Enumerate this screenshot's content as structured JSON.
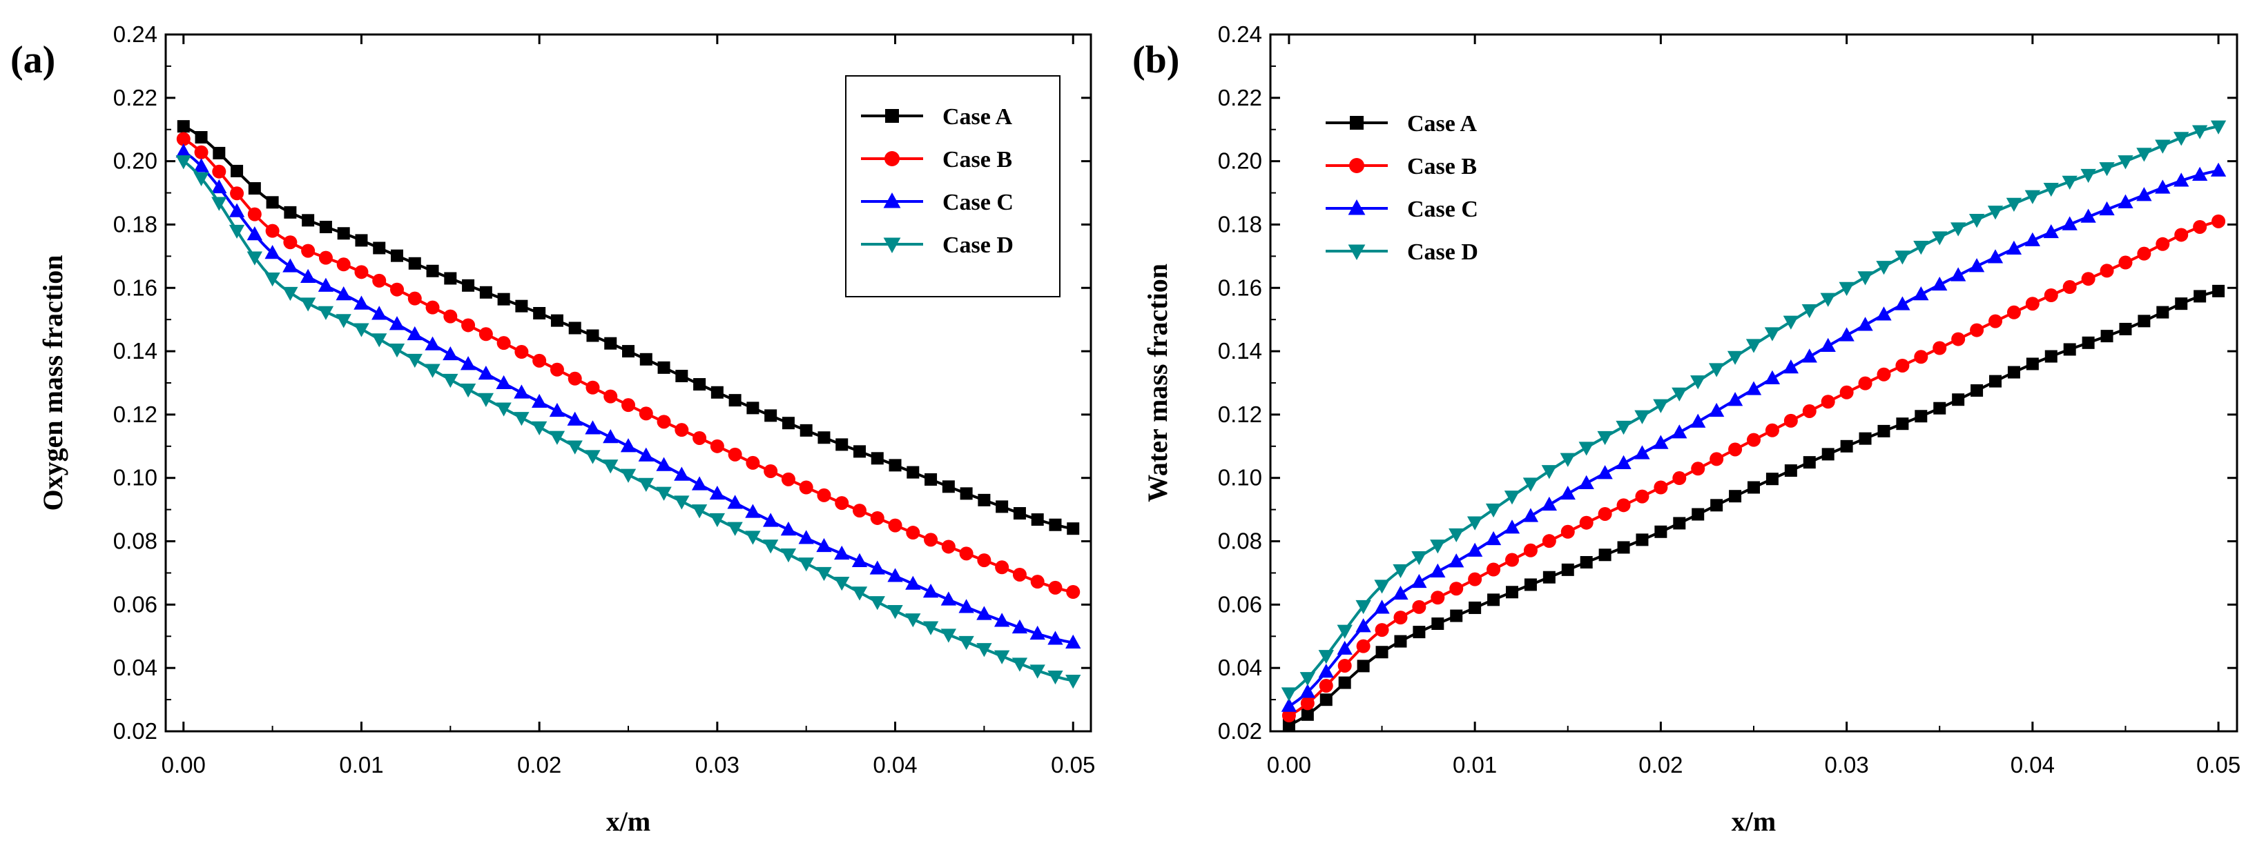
{
  "chart_data": [
    {
      "panel_label": "(a)",
      "type": "line",
      "title": "",
      "xlabel": "x/m",
      "ylabel": "Oxygen mass fraction",
      "xlim": [
        -0.001,
        0.051
      ],
      "ylim": [
        0.02,
        0.24
      ],
      "x_ticks": [
        "0.00",
        "0.01",
        "0.02",
        "0.03",
        "0.04",
        "0.05"
      ],
      "y_ticks": [
        "0.02",
        "0.04",
        "0.06",
        "0.08",
        "0.10",
        "0.12",
        "0.14",
        "0.16",
        "0.18",
        "0.20",
        "0.22",
        "0.24"
      ],
      "legend_position": "top-right",
      "x": [
        0.0,
        0.005,
        0.01,
        0.015,
        0.02,
        0.025,
        0.03,
        0.035,
        0.04,
        0.045,
        0.05
      ],
      "series": [
        {
          "name": "Case A",
          "color": "#000000",
          "marker": "square",
          "values": [
            0.211,
            0.187,
            0.175,
            0.163,
            0.152,
            0.14,
            0.127,
            0.115,
            0.104,
            0.093,
            0.084
          ]
        },
        {
          "name": "Case B",
          "color": "#ff0000",
          "marker": "circle",
          "values": [
            0.207,
            0.178,
            0.165,
            0.151,
            0.137,
            0.123,
            0.11,
            0.097,
            0.085,
            0.074,
            0.064
          ]
        },
        {
          "name": "Case C",
          "color": "#0000ff",
          "marker": "triangle-up",
          "values": [
            0.203,
            0.171,
            0.155,
            0.139,
            0.124,
            0.11,
            0.095,
            0.081,
            0.069,
            0.057,
            0.048
          ]
        },
        {
          "name": "Case D",
          "color": "#008b8b",
          "marker": "triangle-down",
          "values": [
            0.2,
            0.163,
            0.147,
            0.131,
            0.116,
            0.101,
            0.087,
            0.073,
            0.058,
            0.046,
            0.036
          ]
        }
      ]
    },
    {
      "panel_label": "(b)",
      "type": "line",
      "title": "",
      "xlabel": "x/m",
      "ylabel": "Water mass fraction",
      "xlim": [
        -0.001,
        0.051
      ],
      "ylim": [
        0.02,
        0.24
      ],
      "x_ticks": [
        "0.00",
        "0.01",
        "0.02",
        "0.03",
        "0.04",
        "0.05"
      ],
      "y_ticks": [
        "0.02",
        "0.04",
        "0.06",
        "0.08",
        "0.10",
        "0.12",
        "0.14",
        "0.16",
        "0.18",
        "0.20",
        "0.22",
        "0.24"
      ],
      "legend_position": "top-left",
      "x": [
        0.0,
        0.005,
        0.01,
        0.015,
        0.02,
        0.025,
        0.03,
        0.035,
        0.04,
        0.045,
        0.05
      ],
      "series": [
        {
          "name": "Case A",
          "color": "#000000",
          "marker": "square",
          "values": [
            0.022,
            0.045,
            0.059,
            0.071,
            0.083,
            0.097,
            0.11,
            0.122,
            0.136,
            0.147,
            0.159
          ]
        },
        {
          "name": "Case B",
          "color": "#ff0000",
          "marker": "circle",
          "values": [
            0.025,
            0.052,
            0.068,
            0.083,
            0.097,
            0.112,
            0.127,
            0.141,
            0.155,
            0.168,
            0.181
          ]
        },
        {
          "name": "Case C",
          "color": "#0000ff",
          "marker": "triangle-up",
          "values": [
            0.028,
            0.059,
            0.077,
            0.095,
            0.111,
            0.128,
            0.145,
            0.161,
            0.175,
            0.187,
            0.197
          ]
        },
        {
          "name": "Case D",
          "color": "#008b8b",
          "marker": "triangle-down",
          "values": [
            0.032,
            0.066,
            0.086,
            0.106,
            0.123,
            0.142,
            0.16,
            0.176,
            0.189,
            0.2,
            0.211
          ]
        }
      ]
    }
  ]
}
